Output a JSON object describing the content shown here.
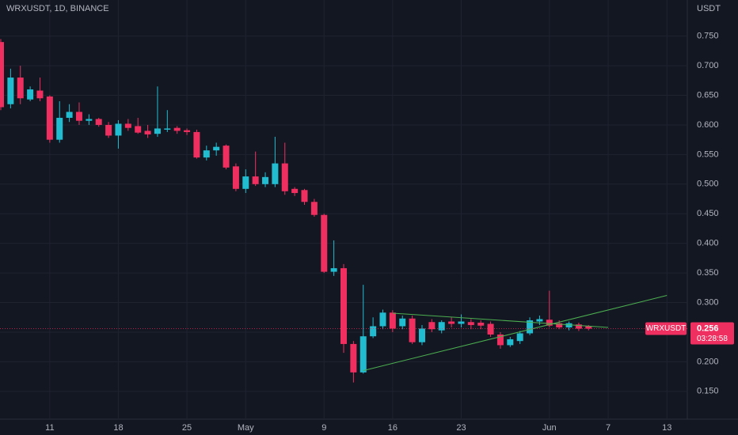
{
  "chart_data": {
    "type": "candlestick",
    "title": "WRXUSDT, 1D, BINANCE",
    "y_axis_label": "USDT",
    "series_name": "WRXUSDT",
    "up_color": "#22bcd0",
    "down_color": "#ef2f5f",
    "x": [
      "04-06",
      "04-07",
      "04-08",
      "04-09",
      "04-10",
      "04-11",
      "04-12",
      "04-13",
      "04-14",
      "04-15",
      "04-16",
      "04-17",
      "04-18",
      "04-19",
      "04-20",
      "04-21",
      "04-22",
      "04-23",
      "04-24",
      "04-25",
      "04-26",
      "04-27",
      "04-28",
      "04-29",
      "04-30",
      "05-01",
      "05-02",
      "05-03",
      "05-04",
      "05-05",
      "05-06",
      "05-07",
      "05-08",
      "05-09",
      "05-10",
      "05-11",
      "05-12",
      "05-13",
      "05-14",
      "05-15",
      "05-16",
      "05-17",
      "05-18",
      "05-19",
      "05-20",
      "05-21",
      "05-22",
      "05-23",
      "05-24",
      "05-25",
      "05-26",
      "05-27",
      "05-28",
      "05-29",
      "05-30",
      "05-31",
      "06-01",
      "06-02",
      "06-03",
      "06-04",
      "06-05"
    ],
    "open": [
      0.74,
      0.635,
      0.68,
      0.643,
      0.658,
      0.648,
      0.575,
      0.612,
      0.622,
      0.607,
      0.61,
      0.6,
      0.582,
      0.602,
      0.598,
      0.59,
      0.585,
      0.592,
      0.595,
      0.591,
      0.588,
      0.545,
      0.557,
      0.565,
      0.53,
      0.492,
      0.513,
      0.5,
      0.5,
      0.535,
      0.492,
      0.49,
      0.47,
      0.448,
      0.352,
      0.358,
      0.23,
      0.182,
      0.243,
      0.26,
      0.283,
      0.26,
      0.273,
      0.233,
      0.267,
      0.253,
      0.268,
      0.264,
      0.267,
      0.266,
      0.264,
      0.246,
      0.228,
      0.235,
      0.248,
      0.268,
      0.271,
      0.265,
      0.258,
      0.263,
      0.26
    ],
    "high": [
      0.745,
      0.695,
      0.7,
      0.665,
      0.68,
      0.65,
      0.64,
      0.635,
      0.638,
      0.618,
      0.612,
      0.605,
      0.608,
      0.61,
      0.612,
      0.6,
      0.665,
      0.625,
      0.598,
      0.594,
      0.592,
      0.565,
      0.57,
      0.567,
      0.535,
      0.525,
      0.555,
      0.52,
      0.58,
      0.57,
      0.495,
      0.492,
      0.475,
      0.45,
      0.405,
      0.365,
      0.235,
      0.33,
      0.275,
      0.288,
      0.287,
      0.278,
      0.278,
      0.262,
      0.272,
      0.27,
      0.275,
      0.28,
      0.272,
      0.27,
      0.268,
      0.25,
      0.242,
      0.252,
      0.275,
      0.278,
      0.32,
      0.27,
      0.268,
      0.266,
      0.262
    ],
    "low": [
      0.625,
      0.628,
      0.635,
      0.64,
      0.64,
      0.57,
      0.57,
      0.605,
      0.6,
      0.6,
      0.597,
      0.578,
      0.56,
      0.59,
      0.585,
      0.578,
      0.58,
      0.588,
      0.585,
      0.583,
      0.543,
      0.54,
      0.548,
      0.525,
      0.488,
      0.485,
      0.497,
      0.495,
      0.495,
      0.482,
      0.48,
      0.465,
      0.445,
      0.35,
      0.345,
      0.215,
      0.165,
      0.18,
      0.24,
      0.255,
      0.25,
      0.255,
      0.23,
      0.228,
      0.25,
      0.248,
      0.258,
      0.258,
      0.255,
      0.255,
      0.242,
      0.222,
      0.225,
      0.23,
      0.245,
      0.262,
      0.258,
      0.255,
      0.253,
      0.252,
      0.253
    ],
    "close": [
      0.63,
      0.68,
      0.645,
      0.66,
      0.645,
      0.575,
      0.612,
      0.622,
      0.607,
      0.61,
      0.6,
      0.582,
      0.602,
      0.595,
      0.587,
      0.584,
      0.594,
      0.594,
      0.59,
      0.588,
      0.545,
      0.557,
      0.563,
      0.528,
      0.492,
      0.513,
      0.5,
      0.512,
      0.535,
      0.488,
      0.485,
      0.47,
      0.448,
      0.352,
      0.358,
      0.23,
      0.182,
      0.243,
      0.26,
      0.283,
      0.256,
      0.273,
      0.233,
      0.256,
      0.255,
      0.267,
      0.264,
      0.268,
      0.262,
      0.261,
      0.246,
      0.228,
      0.238,
      0.248,
      0.27,
      0.272,
      0.261,
      0.258,
      0.265,
      0.256,
      0.256
    ],
    "last_price": 0.256,
    "countdown": "03:28:58",
    "trendlines": [
      {
        "x": [
          "05-13",
          "06-13"
        ],
        "y": [
          0.185,
          0.312
        ],
        "color": "#4caf50"
      },
      {
        "x": [
          "05-16",
          "06-07"
        ],
        "y": [
          0.282,
          0.258
        ],
        "color": "#4caf50"
      }
    ],
    "xlim": [
      "04-06",
      "06-15"
    ],
    "xticks": [
      {
        "value": "04-11",
        "label": "11"
      },
      {
        "value": "04-18",
        "label": "18"
      },
      {
        "value": "04-25",
        "label": "25"
      },
      {
        "value": "05-01",
        "label": "May"
      },
      {
        "value": "05-09",
        "label": "9"
      },
      {
        "value": "05-16",
        "label": "16"
      },
      {
        "value": "05-23",
        "label": "23"
      },
      {
        "value": "06-01",
        "label": "Jun"
      },
      {
        "value": "06-07",
        "label": "7"
      },
      {
        "value": "06-13",
        "label": "13"
      }
    ],
    "ylim": [
      0.103,
      0.811
    ],
    "yticks": [
      {
        "value": 0.15,
        "label": "0.150"
      },
      {
        "value": 0.2,
        "label": "0.200"
      },
      {
        "value": 0.25,
        "label": "0.250"
      },
      {
        "value": 0.3,
        "label": "0.300"
      },
      {
        "value": 0.35,
        "label": "0.350"
      },
      {
        "value": 0.4,
        "label": "0.400"
      },
      {
        "value": 0.45,
        "label": "0.450"
      },
      {
        "value": 0.5,
        "label": "0.500"
      },
      {
        "value": 0.55,
        "label": "0.550"
      },
      {
        "value": 0.6,
        "label": "0.600"
      },
      {
        "value": 0.65,
        "label": "0.650"
      },
      {
        "value": 0.7,
        "label": "0.700"
      },
      {
        "value": 0.75,
        "label": "0.750"
      }
    ],
    "grid": true
  }
}
